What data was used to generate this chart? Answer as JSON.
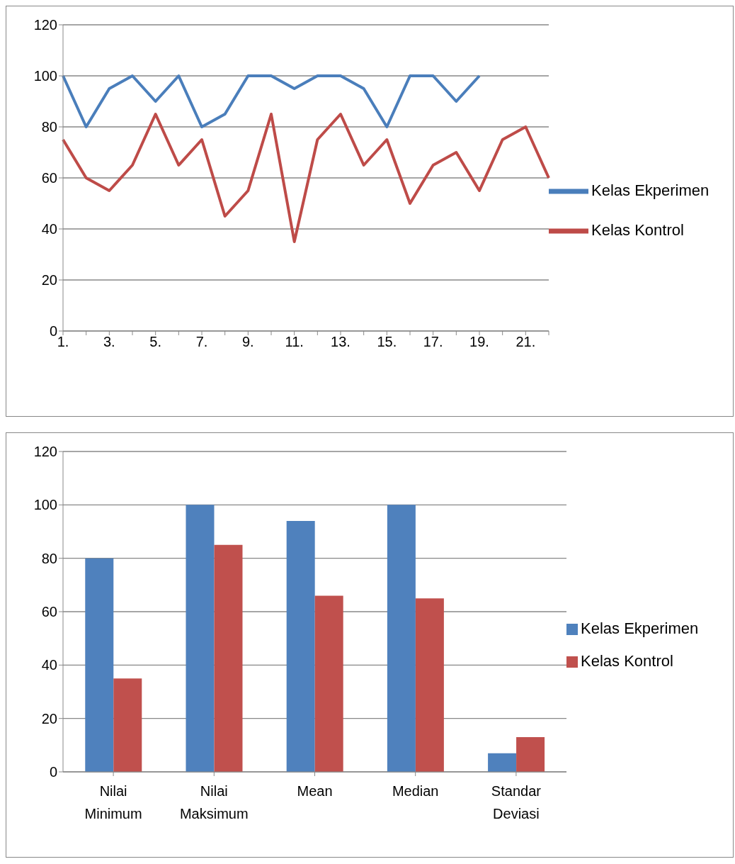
{
  "chart_data": [
    {
      "type": "line",
      "categories": [
        "1.",
        null,
        "3.",
        null,
        "5.",
        null,
        "7.",
        null,
        "9.",
        null,
        "11.",
        null,
        "13.",
        null,
        "15.",
        null,
        "17.",
        null,
        "19.",
        null,
        "21.",
        null
      ],
      "series": [
        {
          "name": "Kelas Ekperimen",
          "color": "#4a7ebb",
          "values": [
            100,
            80,
            95,
            100,
            90,
            100,
            80,
            85,
            100,
            100,
            95,
            100,
            100,
            95,
            80,
            100,
            100,
            90,
            100,
            null,
            null,
            null
          ]
        },
        {
          "name": "Kelas Kontrol",
          "color": "#be4b48",
          "values": [
            75,
            60,
            55,
            65,
            85,
            65,
            75,
            45,
            55,
            85,
            35,
            75,
            85,
            65,
            75,
            50,
            65,
            70,
            55,
            75,
            80,
            60
          ]
        }
      ],
      "ylim": [
        0,
        120
      ],
      "yticks": [
        0,
        20,
        40,
        60,
        80,
        100,
        120
      ],
      "grid": "y",
      "legend": "right",
      "marker": "none",
      "line_style": "solid"
    },
    {
      "type": "bar",
      "categories": [
        "Nilai Minimum",
        "Nilai Maksimum",
        "Mean",
        "Median",
        "Standar Deviasi"
      ],
      "series": [
        {
          "name": "Kelas Ekperimen",
          "color": "#4f81bd",
          "values": [
            80,
            100,
            94,
            100,
            7
          ]
        },
        {
          "name": "Kelas Kontrol",
          "color": "#c0504d",
          "values": [
            35,
            85,
            66,
            65,
            13
          ]
        }
      ],
      "ylim": [
        0,
        120
      ],
      "yticks": [
        0,
        20,
        40,
        60,
        80,
        100,
        120
      ],
      "grid": "y",
      "legend": "right"
    }
  ]
}
